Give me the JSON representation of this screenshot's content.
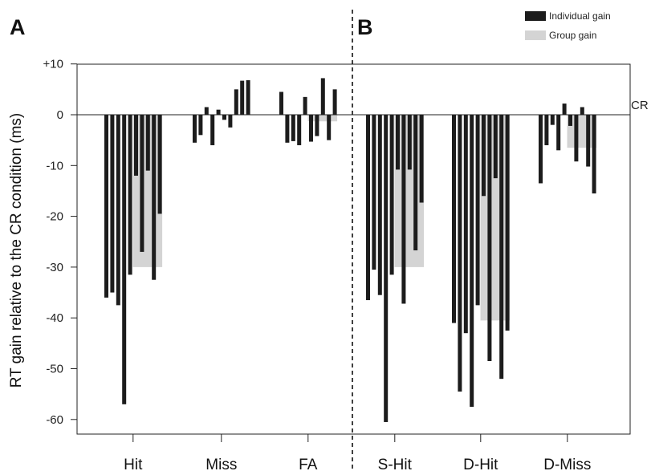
{
  "chart_data": {
    "type": "bar",
    "ylabel": "RT gain relative to the CR condition (ms)",
    "ylim": [
      -64,
      10
    ],
    "yticks": [
      10,
      0,
      -10,
      -20,
      -30,
      -40,
      -50,
      -60
    ],
    "ytick_labels": [
      "+10",
      "0",
      "-10",
      "-20",
      "-30",
      "-40",
      "-50",
      "-60"
    ],
    "reference_line": {
      "value": 0,
      "label": "CR"
    },
    "legend": {
      "placement": "top-right",
      "entries": [
        {
          "label": "Individual gain",
          "color": "#1c1c1c"
        },
        {
          "label": "Group gain",
          "color": "#d4d4d4"
        }
      ]
    },
    "colors": {
      "individual": "#1c1c1c",
      "group": "#d4d4d4"
    },
    "panels": [
      {
        "label": "A",
        "categories": [
          {
            "name": "Hit",
            "group": -30,
            "individual": [
              -36,
              -35,
              -37.5,
              -57,
              -31.5,
              -12,
              -27,
              -11,
              -32.5,
              -19.5
            ]
          },
          {
            "name": "Miss",
            "group": 0,
            "individual": [
              -5.5,
              -4,
              1.5,
              -6,
              1,
              -1,
              -2.5,
              5,
              6.7,
              6.8
            ]
          },
          {
            "name": "FA",
            "group": -1.3,
            "individual": [
              4.5,
              -5.5,
              -5.2,
              -6,
              3.5,
              -5.3,
              -4.2,
              7.2,
              -5,
              5
            ]
          }
        ]
      },
      {
        "label": "B",
        "categories": [
          {
            "name": "S-Hit",
            "group": -30,
            "individual": [
              -36.5,
              -30.5,
              -35.5,
              -60.5,
              -31.5,
              -10.8,
              -37.2,
              -10.8,
              -26.7,
              -17.3
            ]
          },
          {
            "name": "D-Hit",
            "group": -40.5,
            "individual": [
              -41,
              -54.5,
              -43,
              -57.5,
              -37.5,
              -16,
              -48.5,
              -12.5,
              -52,
              -42.5
            ]
          },
          {
            "name": "D-Miss",
            "group": -6.5,
            "individual": [
              -13.5,
              -6,
              -2,
              -7,
              2.2,
              -2.2,
              -9.2,
              1.5,
              -10.2,
              -15.5
            ]
          }
        ]
      }
    ]
  }
}
